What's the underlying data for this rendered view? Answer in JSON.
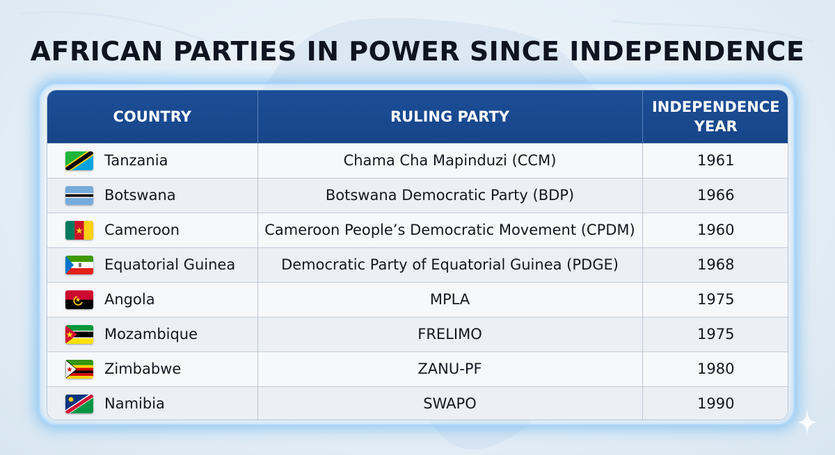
{
  "title": "AFRICAN PARTIES IN POWER SINCE INDEPENDENCE",
  "headers": {
    "country": "COUNTRY",
    "party": "RULING PARTY",
    "year_line1": "INDEPENDENCE",
    "year_line2": "YEAR"
  },
  "rows": [
    {
      "country": "Tanzania",
      "party": "Chama Cha Mapinduzi (CCM)",
      "year": "1961",
      "flag": "tanzania-flag-icon"
    },
    {
      "country": "Botswana",
      "party": "Botswana Democratic Party (BDP)",
      "year": "1966",
      "flag": "botswana-flag-icon"
    },
    {
      "country": "Cameroon",
      "party": "Cameroon People’s Democratic Movement (CPDM)",
      "year": "1960",
      "flag": "cameroon-flag-icon"
    },
    {
      "country": "Equatorial Guinea",
      "party": "Democratic Party of Equatorial Guinea (PDGE)",
      "year": "1968",
      "flag": "equatorial-guinea-flag-icon"
    },
    {
      "country": "Angola",
      "party": "MPLA",
      "year": "1975",
      "flag": "angola-flag-icon"
    },
    {
      "country": "Mozambique",
      "party": "FRELIMO",
      "year": "1975",
      "flag": "mozambique-flag-icon"
    },
    {
      "country": "Zimbabwe",
      "party": "ZANU-PF",
      "year": "1980",
      "flag": "zimbabwe-flag-icon"
    },
    {
      "country": "Namibia",
      "party": "SWAPO",
      "year": "1990",
      "flag": "namibia-flag-icon"
    }
  ],
  "colors": {
    "header_bg": "#1c4e97",
    "glow": "#5aaff0",
    "title": "#0e1420"
  }
}
